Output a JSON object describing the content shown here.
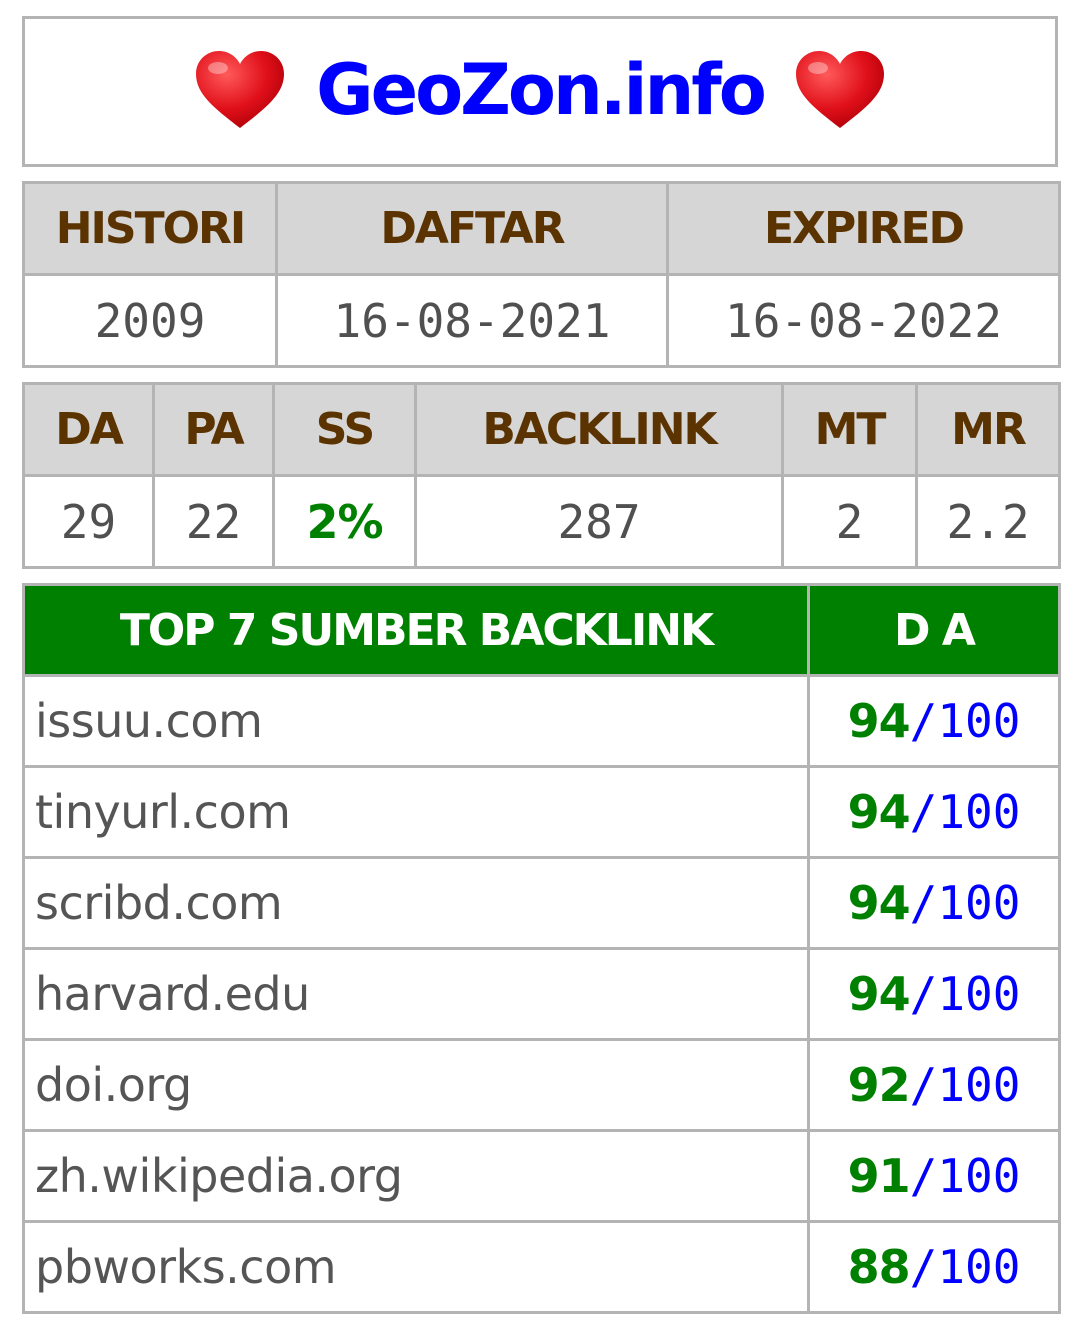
{
  "title": "GeoZon.info",
  "icons": {
    "left": "heart-icon",
    "right": "heart-icon"
  },
  "colors": {
    "title": "#0000ff",
    "header_bg": "#d6d6d6",
    "header_text": "#5a3300",
    "green": "#008000",
    "blue": "#0000ff"
  },
  "info": {
    "headers": [
      "HISTORI",
      "DAFTAR",
      "EXPIRED"
    ],
    "values": [
      "2009",
      "16-08-2021",
      "16-08-2022"
    ]
  },
  "metrics": {
    "headers": [
      "DA",
      "PA",
      "SS",
      "BACKLINK",
      "MT",
      "MR"
    ],
    "values": [
      "29",
      "22",
      "2%",
      "287",
      "2",
      "2.2"
    ]
  },
  "backlinks": {
    "header_source": "TOP 7 SUMBER BACKLINK",
    "header_da": "D A",
    "separator": "/",
    "rows": [
      {
        "domain": "issuu.com",
        "score": "94",
        "max": "100"
      },
      {
        "domain": "tinyurl.com",
        "score": "94",
        "max": "100"
      },
      {
        "domain": "scribd.com",
        "score": "94",
        "max": "100"
      },
      {
        "domain": "harvard.edu",
        "score": "94",
        "max": "100"
      },
      {
        "domain": "doi.org",
        "score": "92",
        "max": "100"
      },
      {
        "domain": "zh.wikipedia.org",
        "score": "91",
        "max": "100"
      },
      {
        "domain": "pbworks.com",
        "score": "88",
        "max": "100"
      }
    ]
  }
}
